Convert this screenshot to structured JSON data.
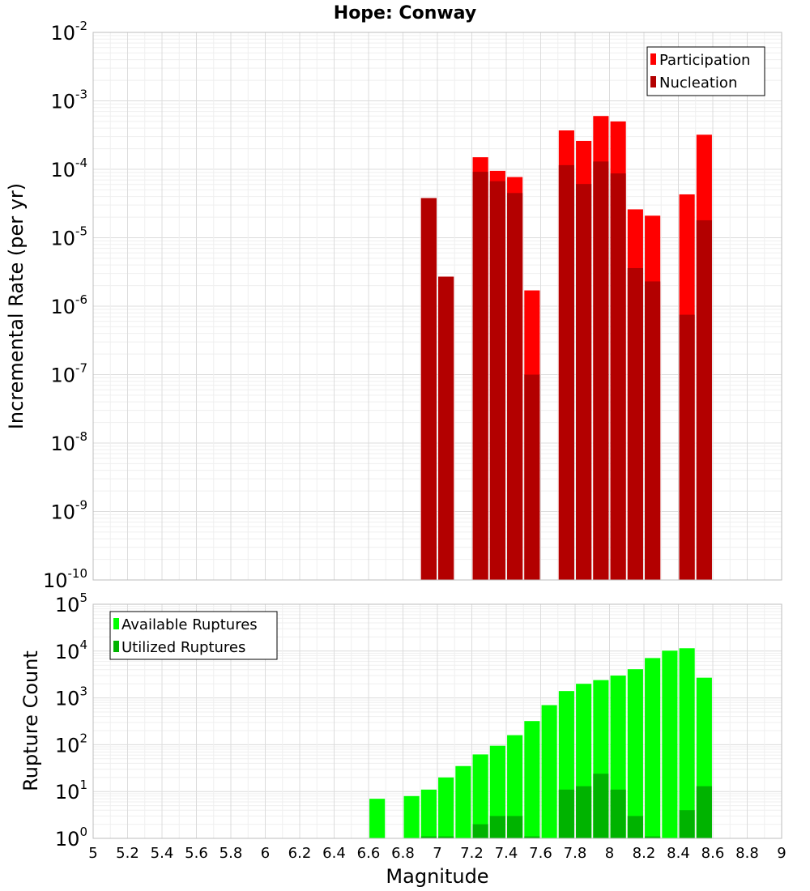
{
  "chart_data": [
    {
      "type": "bar",
      "title": "Hope: Conway",
      "xlabel": "Magnitude",
      "ylabel": "Incremental Rate (per yr)",
      "yscale": "log",
      "xlim": [
        5,
        9
      ],
      "ylim": [
        1e-10,
        0.01
      ],
      "legend_position": "top-right",
      "bar_width": 0.09,
      "series": [
        {
          "name": "Participation",
          "color": "#ff0000",
          "x": [
            6.95,
            7.05,
            7.25,
            7.35,
            7.45,
            7.55,
            7.75,
            7.85,
            7.95,
            8.05,
            8.15,
            8.25,
            8.45,
            8.55
          ],
          "values": [
            3.8e-05,
            2.7e-06,
            0.00015,
            9.5e-05,
            7.7e-05,
            1.7e-06,
            0.00037,
            0.00026,
            0.0006,
            0.0005,
            2.6e-05,
            2.1e-05,
            4.3e-05,
            0.00032
          ]
        },
        {
          "name": "Nucleation",
          "color": "#b30000",
          "x": [
            6.95,
            7.05,
            7.25,
            7.35,
            7.45,
            7.55,
            7.75,
            7.85,
            7.95,
            8.05,
            8.15,
            8.25,
            8.45,
            8.55
          ],
          "values": [
            3.8e-05,
            2.7e-06,
            9.2e-05,
            6.7e-05,
            4.5e-05,
            1e-07,
            0.000115,
            6.1e-05,
            0.00013,
            8.7e-05,
            3.6e-06,
            2.3e-06,
            7.5e-07,
            1.8e-05
          ]
        }
      ]
    },
    {
      "type": "bar",
      "xlabel": "Magnitude",
      "ylabel": "Rupture Count",
      "yscale": "log",
      "xlim": [
        5,
        9
      ],
      "ylim": [
        1,
        100000.0
      ],
      "legend_position": "top-left",
      "bar_width": 0.09,
      "series": [
        {
          "name": "Available Ruptures",
          "color": "#00ff00",
          "x": [
            6.65,
            6.85,
            6.95,
            7.05,
            7.15,
            7.25,
            7.35,
            7.45,
            7.55,
            7.65,
            7.75,
            7.85,
            7.95,
            8.05,
            8.15,
            8.25,
            8.35,
            8.45,
            8.55
          ],
          "values": [
            7,
            8,
            11,
            20,
            35,
            62,
            95,
            160,
            320,
            700,
            1400,
            2000,
            2400,
            3000,
            4100,
            7100,
            10200,
            11500,
            2700
          ]
        },
        {
          "name": "Utilized Ruptures",
          "color": "#00b300",
          "x": [
            6.95,
            7.05,
            7.25,
            7.35,
            7.45,
            7.55,
            7.75,
            7.85,
            7.95,
            8.05,
            8.15,
            8.25,
            8.45,
            8.55
          ],
          "values": [
            1.1,
            1.1,
            2,
            3,
            3,
            1.1,
            11,
            13,
            24,
            11,
            3,
            1.1,
            4,
            13
          ]
        }
      ],
      "xticks": [
        "5",
        "5.2",
        "5.4",
        "5.6",
        "5.8",
        "6",
        "6.2",
        "6.4",
        "6.6",
        "6.8",
        "7",
        "7.2",
        "7.4",
        "7.6",
        "7.8",
        "8",
        "8.2",
        "8.4",
        "8.6",
        "8.8",
        "9"
      ]
    }
  ]
}
